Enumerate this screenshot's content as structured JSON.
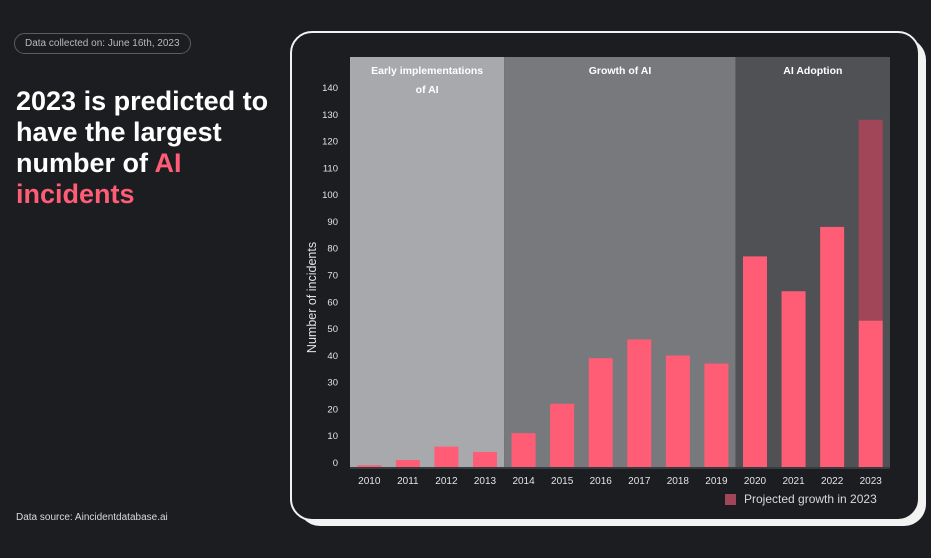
{
  "header": {
    "date_collected": "Data collected on: June 16th, 2023",
    "headline_part1": "2023 is predicted to have the largest number of ",
    "headline_accent": "AI incidents",
    "source": "Data source: Aincidentdatabase.ai"
  },
  "colors": {
    "bar": "#ff5c76",
    "projected": "#a14658",
    "accent": "#ff5c76"
  },
  "chart_data": {
    "type": "bar",
    "categories": [
      "2010",
      "2011",
      "2012",
      "2013",
      "2014",
      "2015",
      "2016",
      "2017",
      "2018",
      "2019",
      "2020",
      "2021",
      "2022",
      "2023"
    ],
    "series": [
      {
        "values": [
          1,
          3,
          8,
          6,
          13,
          24,
          41,
          48,
          42,
          39,
          79,
          66,
          90,
          55
        ]
      },
      {
        "name": "Projected growth in 2023",
        "values": [
          0,
          0,
          0,
          0,
          0,
          0,
          0,
          0,
          0,
          0,
          0,
          0,
          0,
          75
        ]
      }
    ],
    "ylabel": "Number of incidents",
    "xlabel": "",
    "ylim": [
      0,
      140
    ],
    "yticks": [
      0,
      10,
      20,
      30,
      40,
      50,
      60,
      70,
      80,
      90,
      100,
      110,
      120,
      130,
      140
    ],
    "periods": [
      {
        "label": "Early implementations of AI",
        "start": "2010",
        "end": "2013",
        "color": "#a8a9ad"
      },
      {
        "label": "Growth of AI",
        "start": "2014",
        "end": "2019",
        "color": "#78797d"
      },
      {
        "label": "AI Adoption",
        "start": "2020",
        "end": "2023",
        "color": "#505155"
      }
    ],
    "legend": "bottom-right",
    "grid": false
  }
}
